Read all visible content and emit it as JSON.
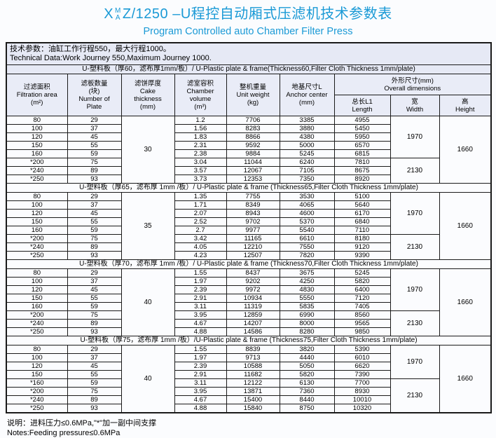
{
  "colors": {
    "accent_blue": "#1b9ad6",
    "header_bg": "#e6e9f5",
    "border": "#1a1a1a"
  },
  "title": {
    "model_prefix": "X",
    "model_sup": "M",
    "model_sub": "A",
    "model_rest": "Z/1250 –U程控自动厢式压滤机技术参数表",
    "subtitle": "Program Controlled auto Chamber Filter Press"
  },
  "tech_box": {
    "line1": "技术参数：油缸工作行程550，最大行程1000。",
    "line2": "Technical Data:Work Journey 550,Maximum Journey 1000."
  },
  "table": {
    "headers": {
      "filtration_area": "过滤面积\nFiltration area\n(m²)",
      "plate_count": "滤板数量\n(块)\nNumber of\nPlate",
      "cake_thickness": "滤饼厚度\nCake\nthickness\n(mm)",
      "chamber_volume": "滤室容积\nChamber\nvolume\n(m³)",
      "unit_weight": "整机重量\nUnit weight\n(kg)",
      "anchor_center": "地基尺寸L\nAnchor center\n(mm)",
      "overall_dimensions": "外形尺寸(mm)\nOverall dimensions",
      "length": "总长L1\nLength",
      "width": "宽\nWidth",
      "height": "高\nHeight"
    },
    "sections": [
      {
        "label": "U-塑料板（厚60，滤布厚1mm/板）/ U-Plastic plate & frame(Thickness60,Filter Cloth Thickness 1mm/plate)",
        "cake_thickness": "30",
        "rows": [
          [
            "80",
            "29",
            "1.2",
            "7706",
            "3385",
            "4955"
          ],
          [
            "100",
            "37",
            "1.56",
            "8283",
            "3880",
            "5450"
          ],
          [
            "120",
            "45",
            "1.83",
            "8866",
            "4380",
            "5950"
          ],
          [
            "150",
            "55",
            "2.31",
            "9592",
            "5000",
            "6570"
          ],
          [
            "160",
            "59",
            "2.38",
            "9884",
            "5245",
            "6815"
          ],
          [
            "*200",
            "75",
            "3.04",
            "11044",
            "6240",
            "7810"
          ],
          [
            "*240",
            "89",
            "3.57",
            "12067",
            "7105",
            "8675"
          ],
          [
            "*250",
            "93",
            "3.73",
            "12353",
            "7350",
            "8920"
          ]
        ],
        "width_groups": [
          {
            "value": "1970",
            "span": 5
          },
          {
            "value": "2130",
            "span": 3
          }
        ],
        "height_value": "1660"
      },
      {
        "label": "U-塑料板（厚65，滤布厚 1mm /板）/ U-Plastic plate & frame (Thickness65,Filter Cloth Thickness 1mm/plate)",
        "cake_thickness": "35",
        "rows": [
          [
            "80",
            "29",
            "1.35",
            "7755",
            "3530",
            "5100"
          ],
          [
            "100",
            "37",
            "1.71",
            "8349",
            "4065",
            "5640"
          ],
          [
            "120",
            "45",
            "2.07",
            "8943",
            "4600",
            "6170"
          ],
          [
            "150",
            "55",
            "2.52",
            "9702",
            "5370",
            "6840"
          ],
          [
            "160",
            "59",
            "2.7",
            "9977",
            "5540",
            "7110"
          ],
          [
            "*200",
            "75",
            "3.42",
            "11165",
            "6610",
            "8180"
          ],
          [
            "*240",
            "89",
            "4.05",
            "12210",
            "7550",
            "9120"
          ],
          [
            "*250",
            "93",
            "4.23",
            "12507",
            "7820",
            "9390"
          ]
        ],
        "width_groups": [
          {
            "value": "1970",
            "span": 5
          },
          {
            "value": "2130",
            "span": 3
          }
        ],
        "height_value": "1660"
      },
      {
        "label": "U-塑料板（厚70，滤布厚 1mm /板）/ U-Plastic plate & frame (Thickness70,Filter Cloth Thickness 1mm/plate)",
        "cake_thickness": "40",
        "rows": [
          [
            "80",
            "29",
            "1.55",
            "8437",
            "3675",
            "5245"
          ],
          [
            "100",
            "37",
            "1.97",
            "9202",
            "4250",
            "5820"
          ],
          [
            "120",
            "45",
            "2.39",
            "9972",
            "4830",
            "6400"
          ],
          [
            "150",
            "55",
            "2.91",
            "10934",
            "5550",
            "7120"
          ],
          [
            "160",
            "59",
            "3.11",
            "11319",
            "5835",
            "7405"
          ],
          [
            "*200",
            "75",
            "3.95",
            "12859",
            "6990",
            "8560"
          ],
          [
            "*240",
            "89",
            "4.67",
            "14207",
            "8000",
            "9565"
          ],
          [
            "*250",
            "93",
            "4.88",
            "14586",
            "8280",
            "9850"
          ]
        ],
        "width_groups": [
          {
            "value": "1970",
            "span": 5
          },
          {
            "value": "2130",
            "span": 3
          }
        ],
        "height_value": "1660"
      },
      {
        "label": "U-塑料板（厚75，滤布厚 1mm /板）/U-Plastic plate & frame (Thickness75,Filter Cloth Thickness 1mm/plate)",
        "cake_thickness": "40",
        "rows": [
          [
            "80",
            "29",
            "1.55",
            "8839",
            "3820",
            "5390"
          ],
          [
            "100",
            "37",
            "1.97",
            "9713",
            "4440",
            "6010"
          ],
          [
            "120",
            "45",
            "2.39",
            "10588",
            "5050",
            "6620"
          ],
          [
            "150",
            "55",
            "2.91",
            "11682",
            "5820",
            "7390"
          ],
          [
            "*160",
            "59",
            "3.11",
            "12122",
            "6130",
            "7700"
          ],
          [
            "*200",
            "75",
            "3.95",
            "13871",
            "7360",
            "8930"
          ],
          [
            "*240",
            "89",
            "4.67",
            "15400",
            "8440",
            "10010"
          ],
          [
            "*250",
            "93",
            "4.88",
            "15840",
            "8750",
            "10320"
          ]
        ],
        "width_groups": [
          {
            "value": "1970",
            "span": 4
          },
          {
            "value": "2130",
            "span": 4
          }
        ],
        "height_value": "1660"
      }
    ]
  },
  "notes": {
    "line1": "说明：进料压力≤0.6MPa,\"*\"加一副中间支撑",
    "line2": "Notes:Feeding pressure≤0.6MPa"
  }
}
